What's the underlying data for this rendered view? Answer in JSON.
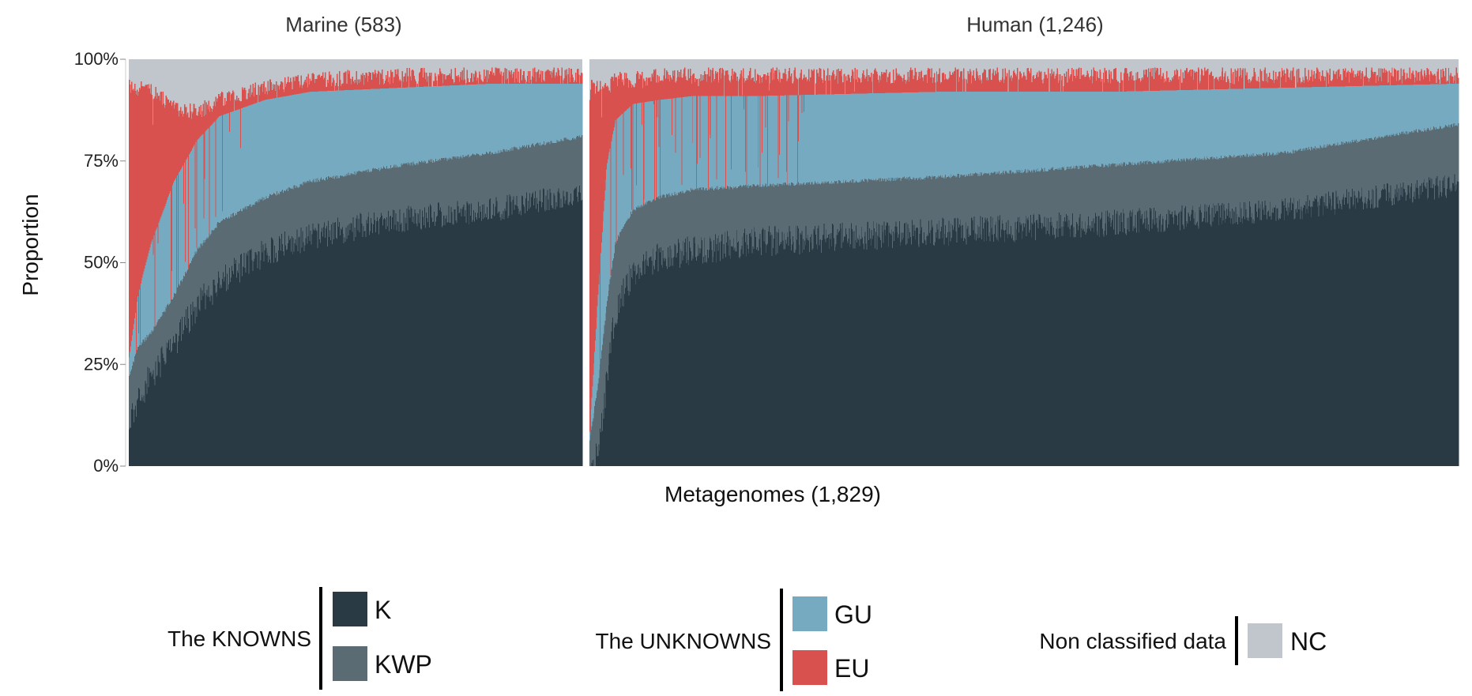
{
  "chart_data": {
    "type": "bar",
    "stacked": true,
    "ylabel": "Proportion",
    "xlabel": "Metagenomes (1,829)",
    "ylim": [
      0,
      1
    ],
    "yticks": [
      "0%",
      "25%",
      "50%",
      "75%",
      "100%"
    ],
    "ytick_values": [
      0,
      0.25,
      0.5,
      0.75,
      1.0
    ],
    "grid": false,
    "legend_position": "bottom",
    "colors": {
      "K": "#2a3a44",
      "KWP": "#5b6b74",
      "GU": "#75aac0",
      "EU": "#d9514e",
      "NC": "#c0c6cb"
    },
    "categories_order": [
      "K",
      "KWP",
      "GU",
      "EU",
      "NC"
    ],
    "facets": [
      {
        "title": "Marine (583)",
        "n": 583,
        "profile": {
          "position": [
            0.0,
            0.02,
            0.05,
            0.1,
            0.15,
            0.2,
            0.3,
            0.4,
            0.6,
            0.8,
            1.0
          ],
          "K": [
            0.14,
            0.2,
            0.26,
            0.34,
            0.43,
            0.49,
            0.56,
            0.6,
            0.64,
            0.66,
            0.7
          ],
          "KWP": [
            0.22,
            0.29,
            0.33,
            0.42,
            0.53,
            0.6,
            0.66,
            0.7,
            0.74,
            0.77,
            0.81
          ],
          "GU": [
            0.26,
            0.42,
            0.55,
            0.7,
            0.8,
            0.86,
            0.9,
            0.92,
            0.93,
            0.94,
            0.94
          ],
          "EU": [
            0.93,
            0.93,
            0.92,
            0.88,
            0.87,
            0.9,
            0.93,
            0.95,
            0.96,
            0.96,
            0.96
          ]
        }
      },
      {
        "title": "Human (1,246)",
        "n": 1246,
        "profile": {
          "position": [
            0.0,
            0.01,
            0.02,
            0.03,
            0.05,
            0.08,
            0.12,
            0.2,
            0.4,
            0.6,
            0.8,
            1.0
          ],
          "K": [
            0.01,
            0.08,
            0.25,
            0.42,
            0.52,
            0.55,
            0.57,
            0.59,
            0.61,
            0.63,
            0.66,
            0.72
          ],
          "KWP": [
            0.06,
            0.2,
            0.4,
            0.55,
            0.63,
            0.66,
            0.68,
            0.69,
            0.71,
            0.74,
            0.77,
            0.84
          ],
          "GU": [
            0.07,
            0.42,
            0.74,
            0.85,
            0.89,
            0.9,
            0.91,
            0.91,
            0.92,
            0.92,
            0.93,
            0.94
          ],
          "EU": [
            0.93,
            0.93,
            0.93,
            0.95,
            0.95,
            0.96,
            0.96,
            0.96,
            0.96,
            0.96,
            0.96,
            0.96
          ]
        }
      }
    ]
  },
  "legend": {
    "groups": [
      {
        "title": "The KNOWNS",
        "items": [
          {
            "key": "K",
            "label": "K"
          },
          {
            "key": "KWP",
            "label": "KWP"
          }
        ]
      },
      {
        "title": "The UNKNOWNS",
        "items": [
          {
            "key": "GU",
            "label": "GU"
          },
          {
            "key": "EU",
            "label": "EU"
          }
        ]
      },
      {
        "title": "Non classified data",
        "items": [
          {
            "key": "NC",
            "label": "NC"
          }
        ]
      }
    ]
  }
}
